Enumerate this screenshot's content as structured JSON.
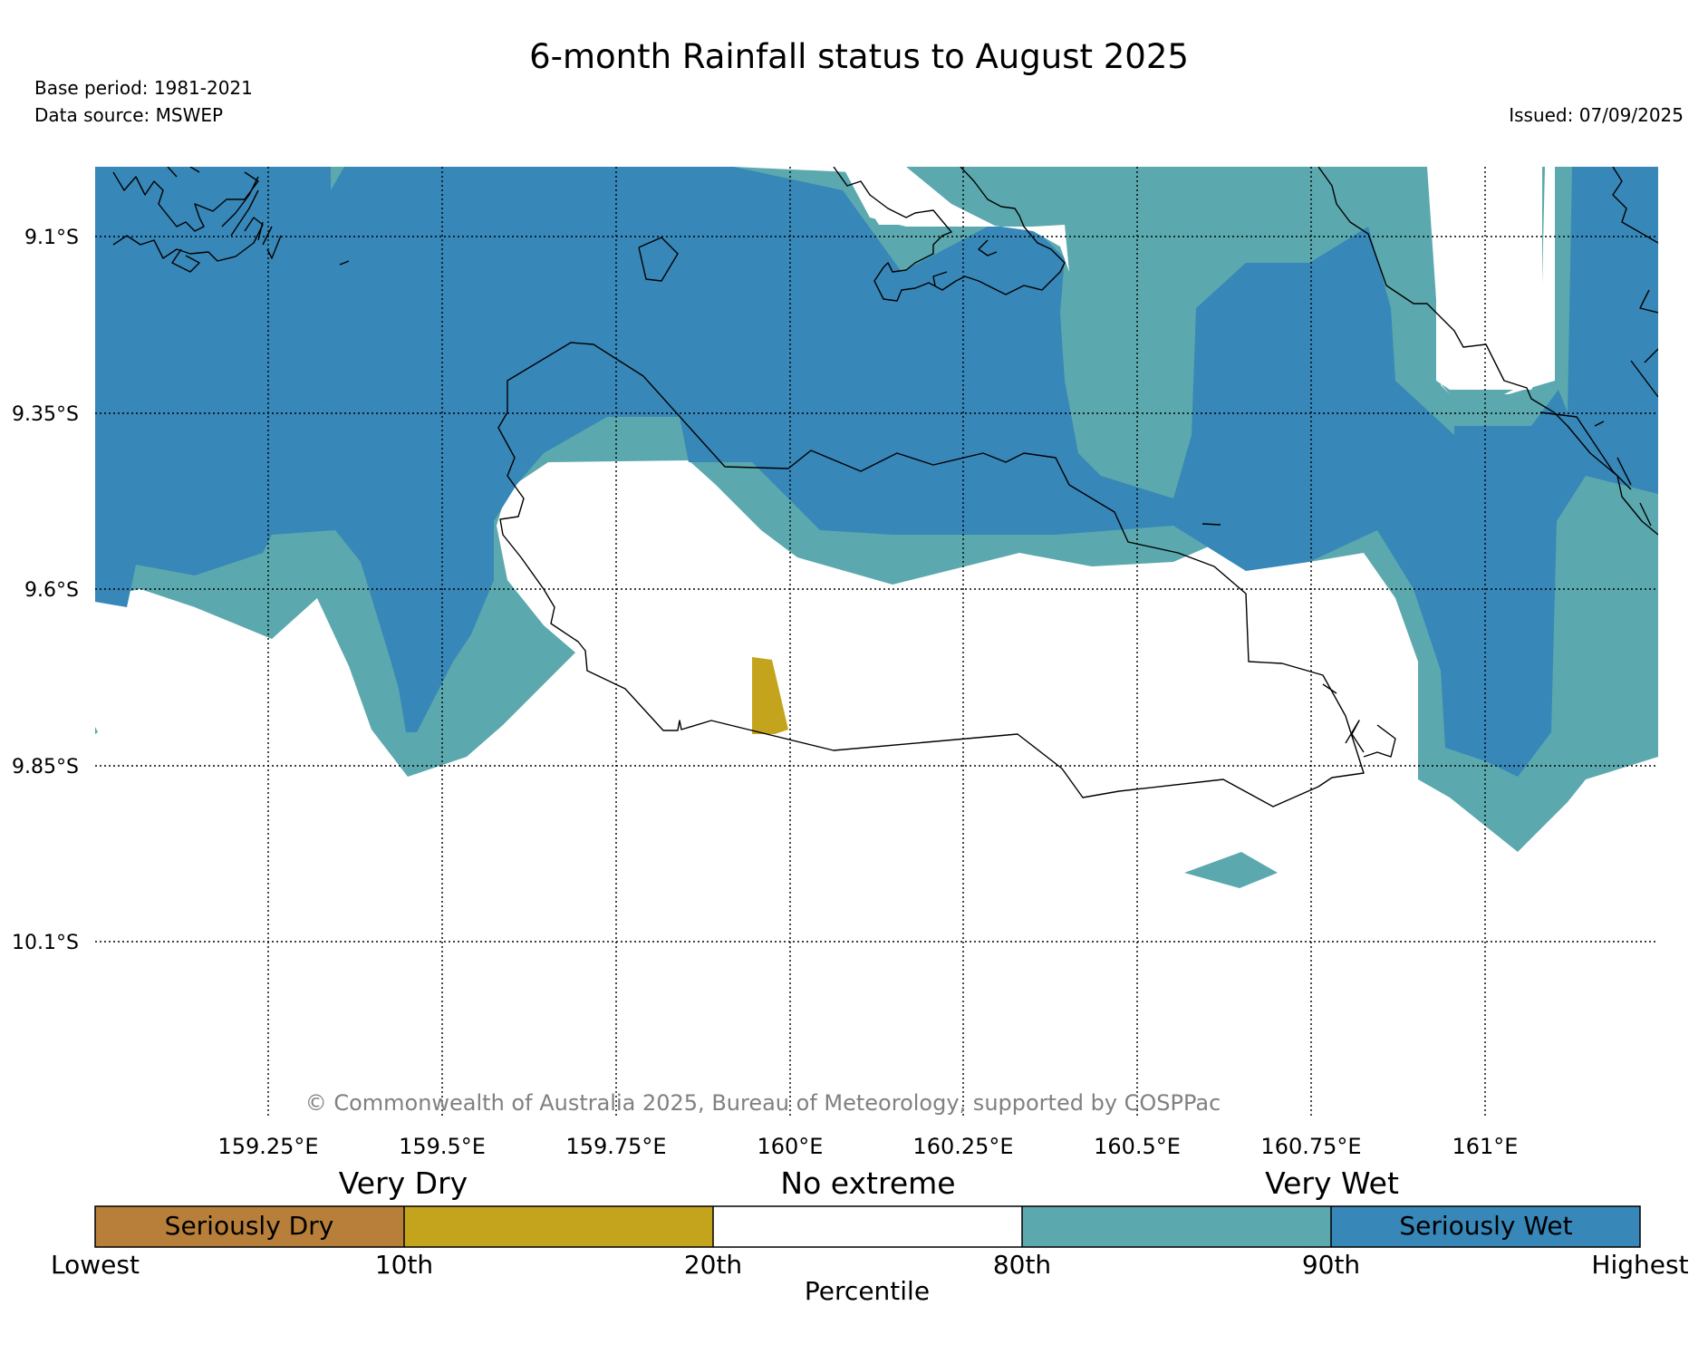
{
  "title": "6-month Rainfall status to August 2025",
  "meta": {
    "base_period": "Base period: 1981-2021",
    "data_source": "Data source: MSWEP",
    "issued": "Issued: 07/09/2025"
  },
  "copyright": "© Commonwealth of Australia 2025, Bureau of Meteorology, supported by COSPPac",
  "map": {
    "lat_labels": [
      "9.1°S",
      "9.35°S",
      "9.6°S",
      "9.85°S",
      "10.1°S"
    ],
    "lon_labels": [
      "159.25°E",
      "159.5°E",
      "159.75°E",
      "160°E",
      "160.25°E",
      "160.5°E",
      "160.75°E",
      "161°E"
    ]
  },
  "legend": {
    "groups": [
      "Very Dry",
      "No extreme",
      "Very Wet"
    ],
    "segments": [
      {
        "label": "Seriously Dry",
        "color": "#b87f3a"
      },
      {
        "label": "",
        "color": "#c4a41c"
      },
      {
        "label": "",
        "color": "#ffffff"
      },
      {
        "label": "",
        "color": "#5ba9ae"
      },
      {
        "label": "Seriously Wet",
        "color": "#3787b8"
      }
    ],
    "ticks": [
      "Lowest",
      "10th",
      "20th",
      "80th",
      "90th",
      "Highest"
    ],
    "axis_label": "Percentile"
  },
  "colors": {
    "seriously_dry": "#b87f3a",
    "very_dry": "#c4a41c",
    "no_extreme": "#ffffff",
    "very_wet": "#5ba9ae",
    "seriously_wet": "#3787b8"
  }
}
